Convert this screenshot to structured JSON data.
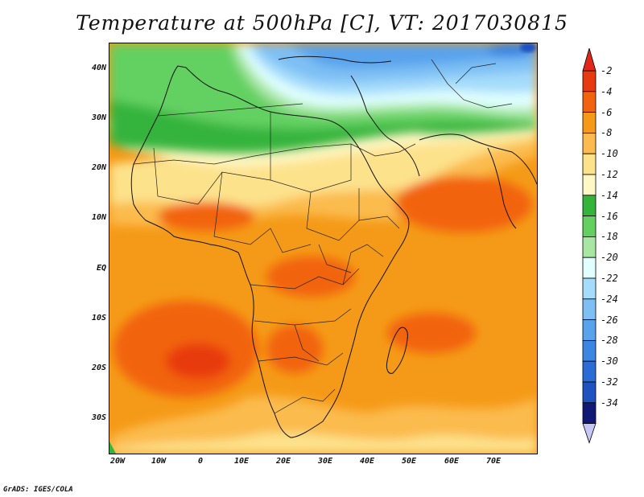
{
  "title": "Temperature at 500hPa [C], VT: 2017030815",
  "y_labels": [
    "40N",
    "30N",
    "20N",
    "10N",
    "EQ",
    "10S",
    "20S",
    "30S"
  ],
  "x_labels": [
    "20W",
    "10W",
    "0",
    "10E",
    "20E",
    "30E",
    "40E",
    "50E",
    "60E",
    "70E"
  ],
  "colorbar": {
    "labels": [
      "-2",
      "-4",
      "-6",
      "-8",
      "-10",
      "-12",
      "-14",
      "-16",
      "-18",
      "-20",
      "-22",
      "-24",
      "-26",
      "-28",
      "-30",
      "-32",
      "-34"
    ],
    "colors": [
      "#e83a10",
      "#f26310",
      "#f59a18",
      "#fbbb4e",
      "#fde28c",
      "#fff7c4",
      "#35b43c",
      "#64d062",
      "#a8e7a3",
      "#e0fffe",
      "#a6dcfb",
      "#7ec0f4",
      "#58a3ec",
      "#3a86e1",
      "#2a6bd4",
      "#1f51c0",
      "#101a76"
    ],
    "top_arrow_color": "#e0271a",
    "bottom_arrow_color": "#c8c6f6"
  },
  "footer": "GrADS: IGES/COLA"
}
